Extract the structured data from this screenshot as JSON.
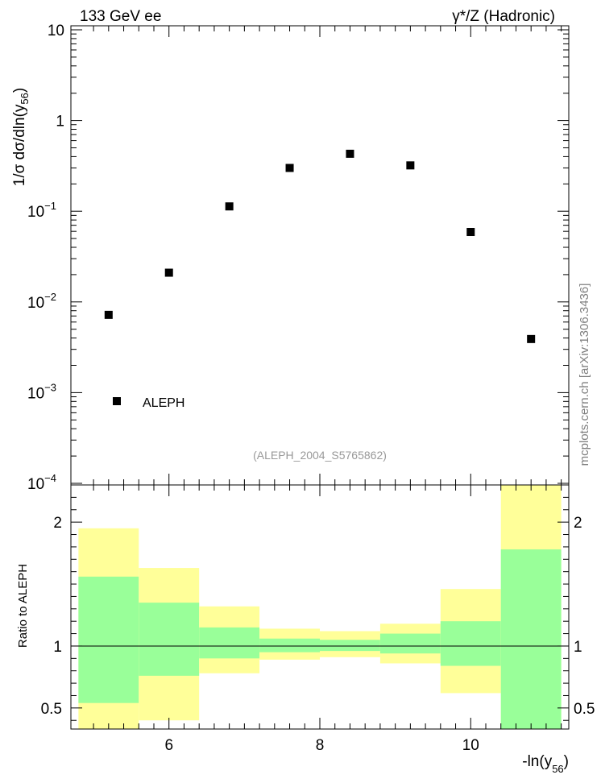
{
  "chart_data": [
    {
      "type": "scatter",
      "panel": "main",
      "title_left": "133 GeV ee",
      "title_right": "γ*/Z (Hadronic)",
      "ylabel": "1/σ  dσ/dln(y",
      "ylabel_sub": "56",
      "ylabel_close": ")",
      "yscale": "log",
      "ylim": [
        0.0001,
        10
      ],
      "xlim": [
        4.7,
        11.3
      ],
      "y_ticks": [
        {
          "v": 10,
          "base": "10",
          "exp": ""
        },
        {
          "v": 1,
          "base": "1",
          "exp": ""
        },
        {
          "v": 0.1,
          "base": "10",
          "exp": "−1"
        },
        {
          "v": 0.01,
          "base": "10",
          "exp": "−2"
        },
        {
          "v": 0.001,
          "base": "10",
          "exp": "−3"
        },
        {
          "v": 0.0001,
          "base": "10",
          "exp": "−4"
        }
      ],
      "series": [
        {
          "name": "ALEPH",
          "x": [
            5.2,
            6.0,
            6.8,
            7.6,
            8.4,
            9.2,
            10.0,
            10.8
          ],
          "y": [
            0.0072,
            0.021,
            0.113,
            0.3,
            0.43,
            0.32,
            0.059,
            0.0039
          ]
        }
      ],
      "legend": "bottom-left",
      "analysis_label": "(ALEPH_2004_S5765862)",
      "side_label": "mcplots.cern.ch [arXiv:1306.3436]"
    },
    {
      "type": "area",
      "panel": "ratio",
      "ylabel": "Ratio to ALEPH",
      "xlabel": "-ln(y",
      "xlabel_sub": "56",
      "xlabel_close": ")",
      "xlim": [
        4.7,
        11.3
      ],
      "ylim": [
        0.33,
        2.3
      ],
      "x_ticks": [
        "6",
        "8",
        "10"
      ],
      "x_tick_values": [
        6,
        8,
        10
      ],
      "y_ticks": [
        "0.5",
        "1",
        "2"
      ],
      "y_tick_values": [
        0.5,
        1,
        2
      ],
      "bins": [
        {
          "lo": 4.8,
          "hi": 5.6,
          "inner": [
            0.54,
            1.56
          ],
          "outer": [
            0.2,
            1.95
          ]
        },
        {
          "lo": 5.6,
          "hi": 6.4,
          "inner": [
            0.76,
            1.35
          ],
          "outer": [
            0.4,
            1.63
          ]
        },
        {
          "lo": 6.4,
          "hi": 7.2,
          "inner": [
            0.9,
            1.15
          ],
          "outer": [
            0.78,
            1.32
          ]
        },
        {
          "lo": 7.2,
          "hi": 8.0,
          "inner": [
            0.95,
            1.06
          ],
          "outer": [
            0.89,
            1.14
          ]
        },
        {
          "lo": 8.0,
          "hi": 8.8,
          "inner": [
            0.96,
            1.05
          ],
          "outer": [
            0.91,
            1.12
          ]
        },
        {
          "lo": 8.8,
          "hi": 9.6,
          "inner": [
            0.94,
            1.1
          ],
          "outer": [
            0.86,
            1.18
          ]
        },
        {
          "lo": 9.6,
          "hi": 10.4,
          "inner": [
            0.84,
            1.2
          ],
          "outer": [
            0.62,
            1.46
          ]
        },
        {
          "lo": 10.4,
          "hi": 11.2,
          "inner": [
            0.2,
            1.78
          ],
          "outer": [
            0.2,
            2.4
          ]
        }
      ],
      "band_colors": {
        "outer": "#ffff99",
        "inner": "#99ff99"
      }
    }
  ]
}
